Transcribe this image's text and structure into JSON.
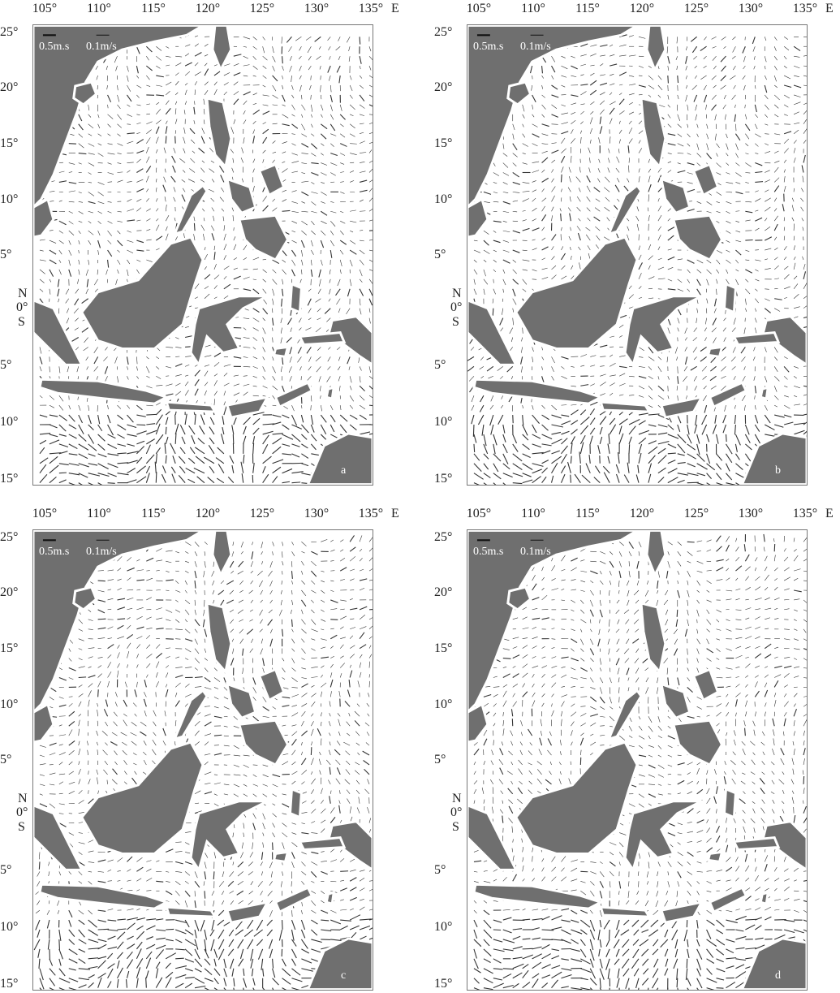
{
  "figure": {
    "lon_ticks": [
      "105°",
      "110°",
      "115°",
      "120°",
      "125°",
      "130°",
      "135°"
    ],
    "lon_suffix": "E",
    "lat_ticks": [
      "25°",
      "20°",
      "15°",
      "10°",
      "5°",
      "0°",
      "5°",
      "10°",
      "15°"
    ],
    "hemi_north": "N",
    "hemi_south": "S",
    "scale_large": "0.5m.s",
    "scale_small": "0.1m/s",
    "colors": {
      "land": "#6f6f6f",
      "arrow": "#333333",
      "ocean": "#ffffff"
    },
    "panels": [
      {
        "id": "a",
        "letter": "a"
      },
      {
        "id": "b",
        "letter": "b"
      },
      {
        "id": "c",
        "letter": "c"
      },
      {
        "id": "d",
        "letter": "d"
      }
    ]
  }
}
